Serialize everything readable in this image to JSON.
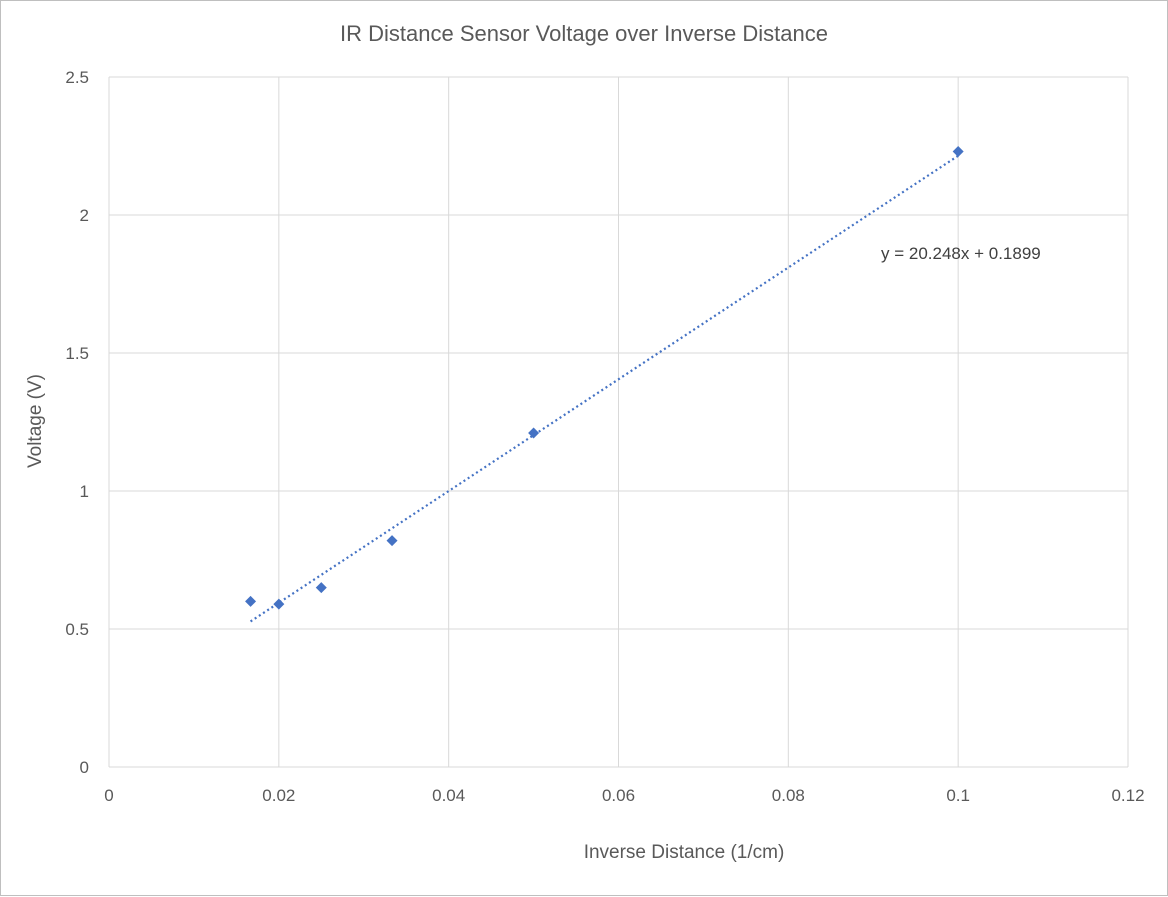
{
  "chart_data": {
    "type": "scatter",
    "title": "IR Distance Sensor Voltage over Inverse Distance",
    "xlabel": "Inverse Distance (1/cm)",
    "ylabel": "Voltage (V)",
    "xlim": [
      0,
      0.12
    ],
    "ylim": [
      0,
      2.5
    ],
    "x_ticks": [
      "0",
      "0.02",
      "0.04",
      "0.06",
      "0.08",
      "0.1",
      "0.12"
    ],
    "y_ticks": [
      "0",
      "0.5",
      "1",
      "1.5",
      "2",
      "2.5"
    ],
    "grid": true,
    "legend": "none",
    "marker_color": "#4472C4",
    "trendline": {
      "type": "linear",
      "slope": 20.248,
      "intercept": 0.1899,
      "x_range": [
        0.01667,
        0.1
      ],
      "style": "dotted",
      "color": "#4472C4",
      "equation": "y = 20.248x + 0.1899"
    },
    "points": [
      {
        "x": 0.01667,
        "y": 0.6
      },
      {
        "x": 0.02,
        "y": 0.59
      },
      {
        "x": 0.025,
        "y": 0.65
      },
      {
        "x": 0.03333,
        "y": 0.82
      },
      {
        "x": 0.05,
        "y": 1.21
      },
      {
        "x": 0.1,
        "y": 2.23
      }
    ]
  }
}
